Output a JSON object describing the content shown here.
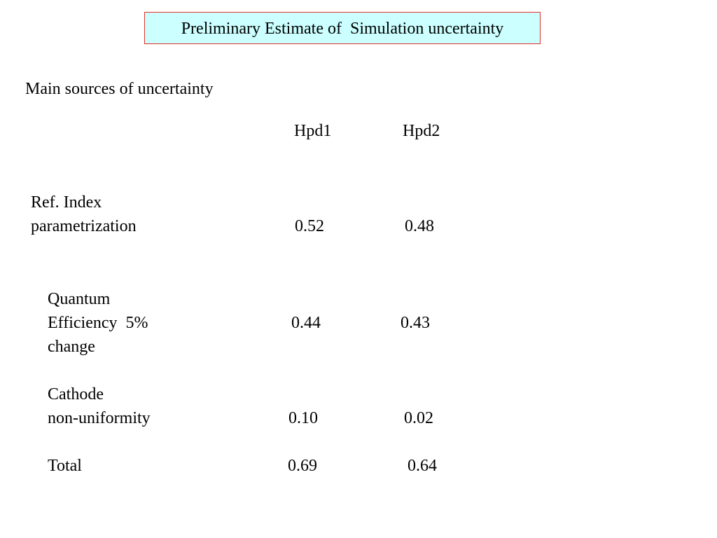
{
  "slide": {
    "title": "Preliminary Estimate of  Simulation uncertainty",
    "subtitle": "Main sources of uncertainty"
  },
  "table": {
    "columns": [
      "Hpd1",
      "Hpd2"
    ],
    "rows": [
      {
        "label_lines": [
          "Ref. Index",
          "parametrization"
        ],
        "hpd1": "0.52",
        "hpd2": "0.48"
      },
      {
        "label_lines": [
          "Quantum",
          "Efficiency  5%",
          "change"
        ],
        "hpd1": "0.44",
        "hpd2": "0.43"
      },
      {
        "label_lines": [
          "Cathode",
          "non-uniformity"
        ],
        "hpd1": "0.10",
        "hpd2": "0.02"
      },
      {
        "label_lines": [
          "Total"
        ],
        "hpd1": "0.69",
        "hpd2": "0.64"
      }
    ]
  }
}
